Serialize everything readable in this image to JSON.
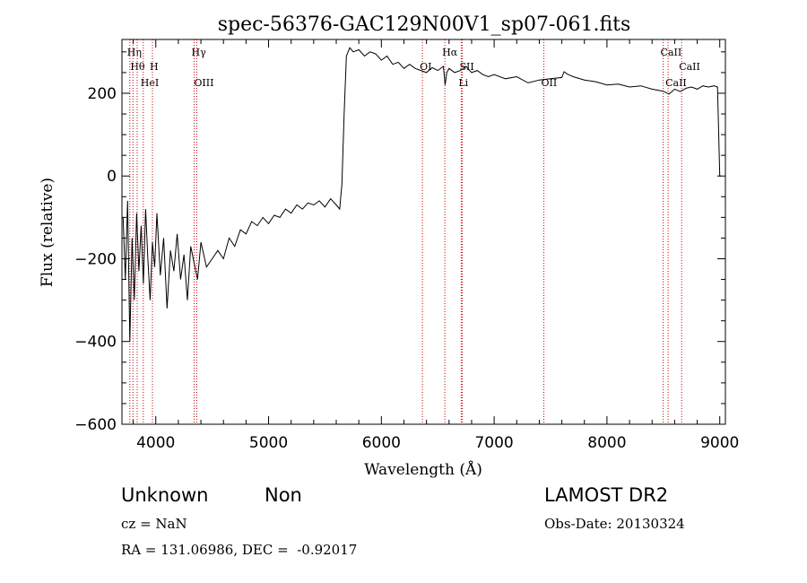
{
  "chart_data": {
    "type": "line",
    "title": "spec-56376-GAC129N00V1_sp07-061.fits",
    "xlabel": "Wavelength (Å)",
    "ylabel": "Flux (relative)",
    "xlim": [
      3700,
      9050
    ],
    "ylim": [
      -600,
      330
    ],
    "xticks": [
      4000,
      5000,
      6000,
      7000,
      8000,
      9000
    ],
    "yticks": [
      200,
      0,
      -200,
      -400,
      -600
    ],
    "grid": false,
    "legend": "none",
    "line_color": "#000000",
    "marker_color": "#cc0000",
    "series": [
      {
        "x": [
          3710,
          3730,
          3750,
          3770,
          3790,
          3810,
          3830,
          3850,
          3870,
          3890,
          3910,
          3930,
          3950,
          3970,
          3990,
          4010,
          4040,
          4070,
          4100,
          4130,
          4160,
          4190,
          4220,
          4250,
          4280,
          4310,
          4340,
          4370,
          4400,
          4450,
          4500,
          4550,
          4600,
          4650,
          4700,
          4750,
          4800,
          4850,
          4900,
          4950,
          5000,
          5050,
          5100,
          5150,
          5200,
          5250,
          5300,
          5350,
          5400,
          5450,
          5500,
          5550,
          5600,
          5630,
          5650,
          5670,
          5690,
          5720,
          5750,
          5800,
          5850,
          5900,
          5950,
          6000,
          6050,
          6100,
          6150,
          6200,
          6250,
          6300,
          6350,
          6400,
          6450,
          6500,
          6550,
          6565,
          6580,
          6600,
          6650,
          6700,
          6750,
          6800,
          6850,
          6900,
          6950,
          7000,
          7100,
          7200,
          7300,
          7400,
          7500,
          7600,
          7620,
          7650,
          7700,
          7800,
          7900,
          8000,
          8100,
          8200,
          8300,
          8400,
          8500,
          8550,
          8600,
          8650,
          8700,
          8750,
          8800,
          8850,
          8900,
          8950,
          8980,
          9000,
          9010
        ],
        "y": [
          -100,
          -250,
          -60,
          -400,
          -150,
          -300,
          -90,
          -230,
          -120,
          -260,
          -80,
          -200,
          -300,
          -160,
          -220,
          -90,
          -240,
          -150,
          -320,
          -180,
          -230,
          -140,
          -250,
          -190,
          -300,
          -170,
          -210,
          -250,
          -160,
          -220,
          -200,
          -180,
          -200,
          -150,
          -170,
          -130,
          -140,
          -110,
          -120,
          -100,
          -115,
          -95,
          -100,
          -80,
          -90,
          -70,
          -80,
          -65,
          -70,
          -60,
          -75,
          -55,
          -70,
          -80,
          -20,
          150,
          290,
          310,
          300,
          305,
          290,
          300,
          295,
          280,
          290,
          270,
          275,
          260,
          270,
          260,
          255,
          250,
          262,
          255,
          265,
          220,
          250,
          260,
          250,
          255,
          265,
          250,
          255,
          245,
          240,
          245,
          235,
          240,
          225,
          232,
          235,
          238,
          252,
          246,
          240,
          232,
          228,
          220,
          222,
          215,
          218,
          210,
          205,
          198,
          210,
          204,
          212,
          215,
          210,
          218,
          215,
          218,
          215,
          0,
          0
        ]
      }
    ],
    "line_markers": [
      {
        "x": 3770,
        "label": "Hη",
        "row": 0
      },
      {
        "x": 3798,
        "label": "Hθ",
        "row": 1
      },
      {
        "x": 3835,
        "label": "",
        "row": 1
      },
      {
        "x": 3889,
        "label": "HeI",
        "row": 2
      },
      {
        "x": 3970,
        "label": "H",
        "row": 1
      },
      {
        "x": 4340,
        "label": "Hγ",
        "row": 0
      },
      {
        "x": 4363,
        "label": "OIII",
        "row": 2
      },
      {
        "x": 6364,
        "label": "OI",
        "row": 1
      },
      {
        "x": 6563,
        "label": "Hα",
        "row": 0
      },
      {
        "x": 6717,
        "label": "SII",
        "row": 1
      },
      {
        "x": 6708,
        "label": "Li",
        "row": 2
      },
      {
        "x": 7440,
        "label": "OII",
        "row": 2
      },
      {
        "x": 8498,
        "label": "CaII",
        "row": 0
      },
      {
        "x": 8542,
        "label": "CaII",
        "row": 2
      },
      {
        "x": 8662,
        "label": "CaII",
        "row": 1
      }
    ]
  },
  "info": {
    "object_class": "Unknown",
    "subclass": "Non",
    "survey": "LAMOST DR2",
    "cz": "cz = NaN",
    "obs_date": "Obs-Date: 20130324",
    "coords": "RA = 131.06986, DEC =  -0.92017"
  }
}
